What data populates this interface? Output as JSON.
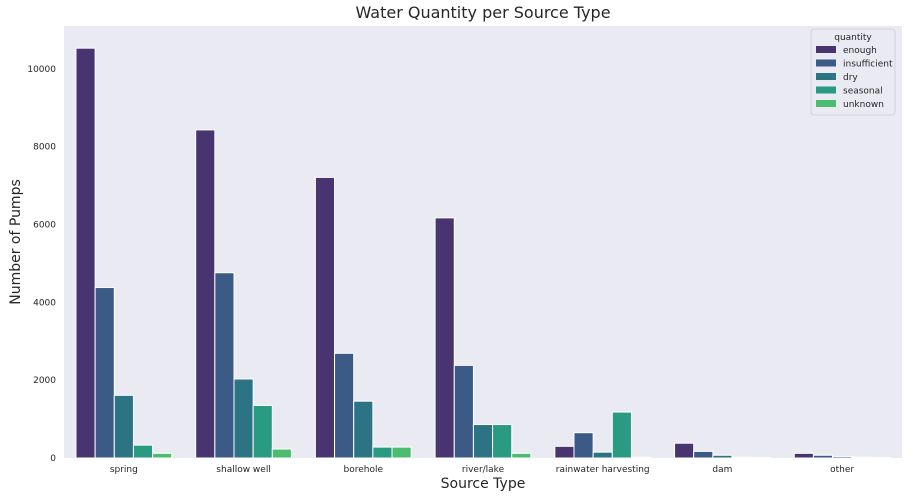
{
  "chart_data": {
    "type": "bar",
    "title": "Water Quantity per Source Type",
    "xlabel": "Source Type",
    "ylabel": "Number of Pumps",
    "categories": [
      "spring",
      "shallow well",
      "borehole",
      "river/lake",
      "rainwater harvesting",
      "dam",
      "other"
    ],
    "series": [
      {
        "name": "enough",
        "color": "#48356f",
        "values": [
          10530,
          8430,
          7210,
          6170,
          300,
          380,
          120
        ]
      },
      {
        "name": "insufficient",
        "color": "#3b5b86",
        "values": [
          4380,
          4760,
          2690,
          2380,
          650,
          170,
          70
        ]
      },
      {
        "name": "dry",
        "color": "#2c7383",
        "values": [
          1610,
          2030,
          1460,
          860,
          150,
          70,
          40
        ]
      },
      {
        "name": "seasonal",
        "color": "#2a9b82",
        "values": [
          330,
          1350,
          280,
          860,
          1180,
          20,
          20
        ]
      },
      {
        "name": "unknown",
        "color": "#4cbd6f",
        "values": [
          120,
          230,
          280,
          120,
          20,
          10,
          10
        ]
      }
    ],
    "ylim": [
      0,
      11100
    ],
    "yticks": [
      0,
      2000,
      4000,
      6000,
      8000,
      10000
    ],
    "grid": false,
    "legend": {
      "title": "quantity",
      "placement": "top-right"
    },
    "background": "#eaeaf2"
  }
}
